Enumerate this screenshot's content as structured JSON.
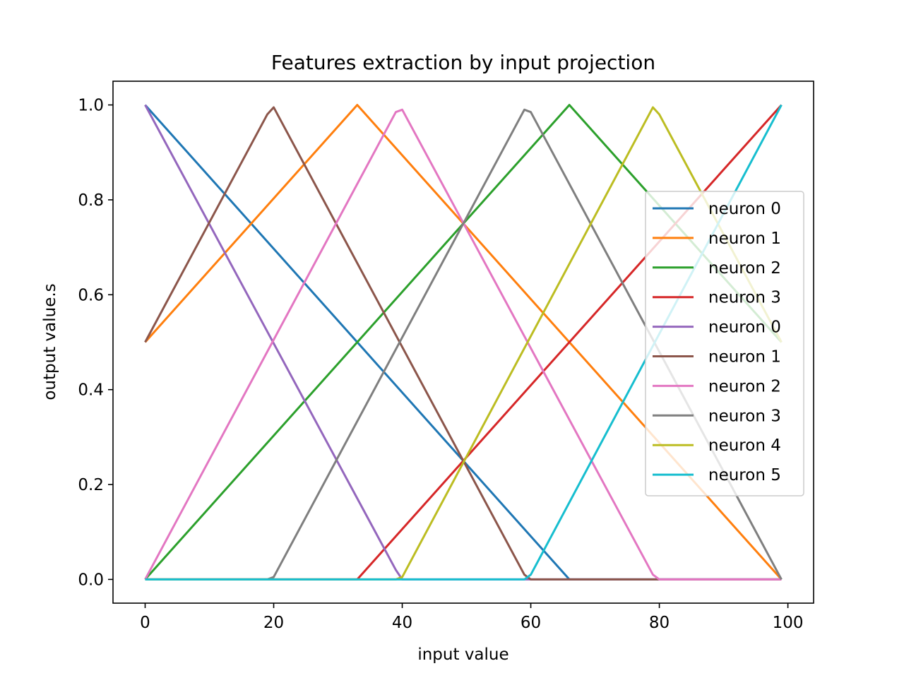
{
  "chart_data": {
    "type": "line",
    "title": "Features extraction by input projection",
    "xlabel": "input value",
    "ylabel": "output value.s",
    "xlim": [
      -5,
      104
    ],
    "ylim": [
      -0.05,
      1.05
    ],
    "xticks": [
      0,
      20,
      40,
      60,
      80,
      100
    ],
    "yticks": [
      0.0,
      0.2,
      0.4,
      0.6,
      0.8,
      1.0
    ],
    "grid": false,
    "legend_position": "center-right",
    "series": [
      {
        "name": "neuron 0",
        "color": "#1f77b4",
        "points": [
          [
            0,
            1.0
          ],
          [
            66,
            0.0
          ],
          [
            99,
            0.0
          ]
        ]
      },
      {
        "name": "neuron 1",
        "color": "#ff7f0e",
        "points": [
          [
            0,
            0.5
          ],
          [
            33,
            1.0
          ],
          [
            99,
            0.0
          ]
        ]
      },
      {
        "name": "neuron 2",
        "color": "#2ca02c",
        "points": [
          [
            0,
            0.0
          ],
          [
            66,
            1.0
          ],
          [
            99,
            0.5
          ]
        ]
      },
      {
        "name": "neuron 3",
        "color": "#d62728",
        "points": [
          [
            0,
            0.0
          ],
          [
            33,
            0.0
          ],
          [
            99,
            1.0
          ]
        ]
      },
      {
        "name": "neuron 0",
        "color": "#9467bd",
        "points": [
          [
            0,
            1.0
          ],
          [
            39,
            0.02
          ],
          [
            40,
            0.0
          ],
          [
            99,
            0.0
          ]
        ]
      },
      {
        "name": "neuron 1",
        "color": "#8c564b",
        "points": [
          [
            0,
            0.5
          ],
          [
            19,
            0.98
          ],
          [
            20,
            0.995
          ],
          [
            59,
            0.01
          ],
          [
            60,
            0.0
          ],
          [
            99,
            0.0
          ]
        ]
      },
      {
        "name": "neuron 2",
        "color": "#e377c2",
        "points": [
          [
            0,
            0.0
          ],
          [
            39,
            0.985
          ],
          [
            40,
            0.99
          ],
          [
            79,
            0.01
          ],
          [
            80,
            0.0
          ],
          [
            99,
            0.0
          ]
        ]
      },
      {
        "name": "neuron 3",
        "color": "#7f7f7f",
        "points": [
          [
            0,
            0.0
          ],
          [
            19,
            0.0
          ],
          [
            20,
            0.005
          ],
          [
            59,
            0.99
          ],
          [
            60,
            0.985
          ],
          [
            99,
            0.0
          ]
        ]
      },
      {
        "name": "neuron 4",
        "color": "#bcbd22",
        "points": [
          [
            0,
            0.0
          ],
          [
            39,
            0.0
          ],
          [
            40,
            0.005
          ],
          [
            79,
            0.995
          ],
          [
            80,
            0.98
          ],
          [
            99,
            0.5
          ]
        ]
      },
      {
        "name": "neuron 5",
        "color": "#17becf",
        "points": [
          [
            0,
            0.0
          ],
          [
            59,
            0.0
          ],
          [
            60,
            0.01
          ],
          [
            99,
            1.0
          ]
        ]
      }
    ]
  }
}
